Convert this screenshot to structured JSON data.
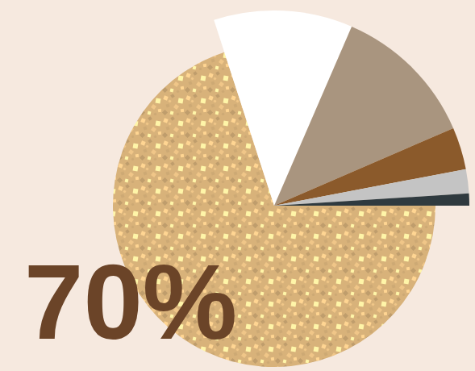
{
  "chart_data": {
    "type": "pie",
    "values": [
      70,
      11.5,
      12,
      3.5,
      2,
      1
    ],
    "colors": [
      "#d8b27a",
      "#ffffff",
      "#a9957f",
      "#8b5a2b",
      "#c4c4c4",
      "#2f3a3f"
    ],
    "data_labels": true,
    "value_labels": [
      "70%",
      null,
      null,
      null,
      null,
      null
    ]
  }
}
